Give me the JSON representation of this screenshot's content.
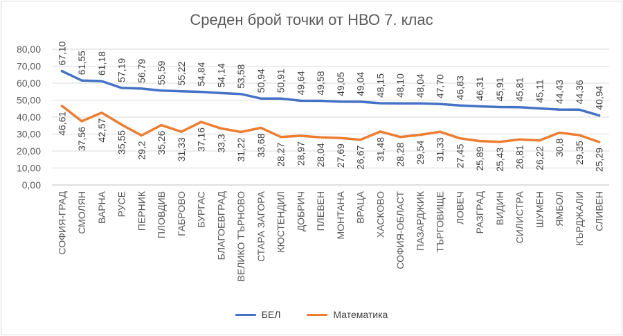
{
  "chart_data": {
    "type": "line",
    "title": "Среден брой точки от НВО 7. клас",
    "categories": [
      "СОФИЯ-ГРАД",
      "СМОЛЯН",
      "ВАРНА",
      "РУСЕ",
      "ПЕРНИК",
      "ПЛОВДИВ",
      "ГАБРОВО",
      "БУРГАС",
      "БЛАГОЕВГРАД",
      "ВЕЛИКО ТЪРНОВО",
      "СТАРА ЗАГОРА",
      "КЮСТЕНДИЛ",
      "ДОБРИЧ",
      "ПЛЕВЕН",
      "МОНТАНА",
      "ВРАЦА",
      "ХАСКОВО",
      "СОФИЯ-ОБЛАСТ",
      "ПАЗАРДЖИК",
      "ТЪРГОВИЩЕ",
      "ЛОВЕЧ",
      "РАЗГРАД",
      "ВИДИН",
      "СИЛИСТРА",
      "ШУМЕН",
      "ЯМБОЛ",
      "КЪРДЖАЛИ",
      "СЛИВЕН"
    ],
    "series": [
      {
        "name": "БЕЛ",
        "color": "#4472c4",
        "values": [
          67.1,
          61.55,
          61.18,
          57.19,
          56.79,
          55.59,
          55.22,
          54.84,
          54.14,
          53.58,
          50.94,
          50.91,
          49.64,
          49.58,
          49.05,
          49.04,
          48.15,
          48.1,
          48.04,
          47.7,
          46.83,
          46.31,
          45.91,
          45.81,
          45.11,
          44.43,
          44.36,
          40.94
        ],
        "labels": [
          "67,10",
          "61,55",
          "61,18",
          "57,19",
          "56,79",
          "55,59",
          "55,22",
          "54,84",
          "54,14",
          "53,58",
          "50,94",
          "50,91",
          "49,64",
          "49,58",
          "49,05",
          "49,04",
          "48,15",
          "48,10",
          "48,04",
          "47,70",
          "46,83",
          "46,31",
          "45,91",
          "45,81",
          "45,11",
          "44,43",
          "44,36",
          "40,94"
        ]
      },
      {
        "name": "Математика",
        "color": "#ed7d31",
        "values": [
          46.61,
          37.56,
          42.57,
          35.55,
          29.2,
          35.26,
          31.33,
          37.16,
          33.3,
          31.22,
          33.68,
          28.27,
          28.97,
          28.04,
          27.69,
          26.67,
          31.48,
          28.28,
          29.54,
          31.33,
          27.45,
          25.89,
          25.43,
          26.81,
          26.22,
          30.8,
          29.35,
          25.29
        ],
        "labels": [
          "46,61",
          "37,56",
          "42,57",
          "35,55",
          "29,2",
          "35,26",
          "31,33",
          "37,16",
          "33,3",
          "31,22",
          "33,68",
          "28,27",
          "28,97",
          "28,04",
          "27,69",
          "26,67",
          "31,48",
          "28,28",
          "29,54",
          "31,33",
          "27,45",
          "25,89",
          "25,43",
          "26,81",
          "26,22",
          "30,8",
          "29,35",
          "25,29"
        ]
      }
    ],
    "ylim": [
      0,
      80
    ],
    "yticks": [
      "0,00",
      "10,00",
      "20,00",
      "30,00",
      "40,00",
      "50,00",
      "60,00",
      "70,00",
      "80,00"
    ],
    "grid": true,
    "legend_position": "bottom"
  }
}
